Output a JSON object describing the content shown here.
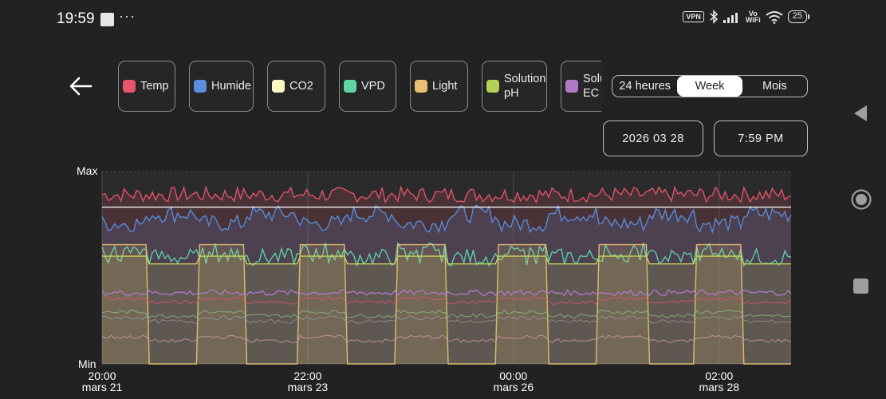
{
  "status_bar": {
    "time": "19:59",
    "dots": "···",
    "vpn": "VPN",
    "vowifi_top": "Vo",
    "vowifi_bottom": "WiFi",
    "battery": "25"
  },
  "chips": [
    {
      "label": "Temp",
      "color": "#e8546d"
    },
    {
      "label": "Humide",
      "color": "#5b8fdd"
    },
    {
      "label": "CO2",
      "color": "#fff6c2"
    },
    {
      "label": "VPD",
      "color": "#5fd6a6"
    },
    {
      "label": "Light",
      "color": "#e8bf73"
    },
    {
      "label": "Solution pH",
      "color": "#b6d15a"
    },
    {
      "label": "Solution EC",
      "color": "#b07ac8"
    }
  ],
  "range": {
    "options": [
      "24 heures",
      "Week",
      "Mois"
    ],
    "selected": "Week"
  },
  "date": "2026 03 28",
  "time": "7:59 PM",
  "chart_data": {
    "type": "line",
    "ylabel_top": "Max",
    "ylabel_bottom": "Min",
    "y_range": [
      0,
      1
    ],
    "x_ticks": [
      {
        "time": "20:00",
        "date": "mars 21"
      },
      {
        "time": "22:00",
        "date": "mars 23"
      },
      {
        "time": "00:00",
        "date": "mars 26"
      },
      {
        "time": "02:00",
        "date": "mars 28"
      }
    ],
    "series": [
      {
        "name": "Temp",
        "color": "#e8546d",
        "mean": 0.88,
        "noise": 0.04,
        "fill": true
      },
      {
        "name": "Humide",
        "color": "#5b8fdd",
        "mean": 0.78,
        "noise": 0.045,
        "fill": true
      },
      {
        "name": "CO2",
        "color": "#ffffff",
        "mean": 0.815,
        "noise": 0.0,
        "fill": false
      },
      {
        "name": "VPD",
        "color": "#5fd6a6",
        "mean": 0.555,
        "noise": 0.045,
        "fill": false
      },
      {
        "name": "Light",
        "color": "#e8bf73",
        "on_value": 0.62,
        "off_value": 0.0,
        "fill": true
      },
      {
        "name": "Solution pH",
        "color": "#c8d45a",
        "mean": 0.52,
        "noise": 0.005,
        "fill": true
      },
      {
        "name": "Solution EC",
        "color": "#b07ac8",
        "mean": 0.37,
        "noise": 0.015,
        "fill": false
      }
    ],
    "grid": true
  },
  "nav": {
    "back": "triangle-back-icon",
    "home": "circle-home-icon",
    "recent": "square-recent-icon"
  }
}
